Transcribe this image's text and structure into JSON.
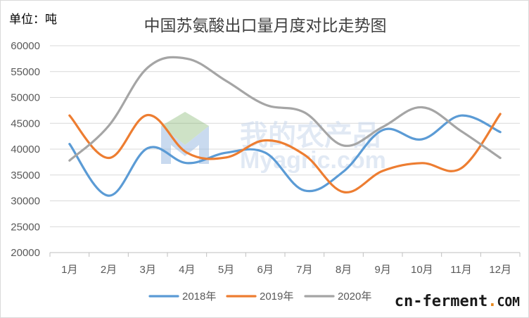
{
  "unit_label": "单位：吨",
  "brand": {
    "main": "cn-ferment",
    "dot": ".",
    "tld": "COM",
    "colors": {
      "main": "#1a1a1a",
      "dot": "#e8891d"
    }
  },
  "watermark": {
    "line1": "我的农产品",
    "line2": "Myagric.com",
    "icon": "m-logo-icon"
  },
  "chart_data": {
    "type": "line",
    "title": "中国苏氨酸出口量月度对比走势图",
    "categories": [
      "1月",
      "2月",
      "3月",
      "4月",
      "5月",
      "6月",
      "7月",
      "8月",
      "9月",
      "10月",
      "11月",
      "12月"
    ],
    "ylim": [
      20000,
      60000
    ],
    "yticks": [
      20000,
      25000,
      30000,
      35000,
      40000,
      45000,
      50000,
      55000,
      60000
    ],
    "grid": true,
    "smooth": true,
    "legend": "bottom",
    "series": [
      {
        "name": "2018年",
        "color": "#5b9bd5",
        "values": [
          41000,
          31000,
          40200,
          37300,
          39300,
          39300,
          32000,
          35700,
          43700,
          41900,
          46500,
          43300
        ]
      },
      {
        "name": "2019年",
        "color": "#ed7d31",
        "values": [
          46500,
          38300,
          46600,
          39300,
          38400,
          41700,
          38900,
          31700,
          35800,
          37300,
          36300,
          46800
        ]
      },
      {
        "name": "2020年",
        "color": "#a5a5a5",
        "values": [
          37800,
          44500,
          55800,
          57500,
          53200,
          48600,
          47100,
          40700,
          44300,
          48100,
          43500,
          38300
        ]
      }
    ]
  }
}
